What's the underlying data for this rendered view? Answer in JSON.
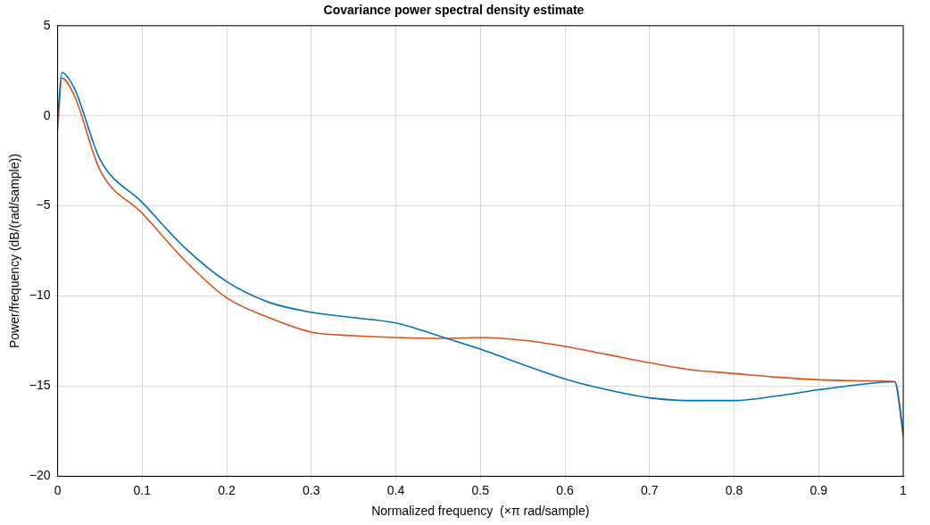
{
  "chart_data": {
    "type": "line",
    "title": "Covariance power spectral density estimate",
    "xlabel": "Normalized frequency  (×π rad/sample)",
    "ylabel": "Power/frequency (dB/(rad/sample))",
    "series": [
      {
        "color": "#0072bd",
        "x": [
          0,
          0.005,
          0.02,
          0.05,
          0.1,
          0.15,
          0.2,
          0.25,
          0.3,
          0.35,
          0.4,
          0.46,
          0.5,
          0.55,
          0.6,
          0.65,
          0.7,
          0.75,
          0.8,
          0.85,
          0.9,
          0.95,
          0.99,
          1
        ],
        "values": [
          -0.2,
          2.4,
          1.5,
          -2.4,
          -4.8,
          -7.3,
          -9.2,
          -10.35,
          -10.9,
          -11.2,
          -11.5,
          -12.35,
          -12.95,
          -13.8,
          -14.6,
          -15.2,
          -15.65,
          -15.8,
          -15.8,
          -15.55,
          -15.2,
          -14.9,
          -14.75,
          -17.5
        ]
      },
      {
        "color": "#d95319",
        "x": [
          0,
          0.005,
          0.02,
          0.05,
          0.1,
          0.15,
          0.2,
          0.25,
          0.3,
          0.35,
          0.4,
          0.46,
          0.5,
          0.55,
          0.6,
          0.65,
          0.7,
          0.75,
          0.8,
          0.85,
          0.9,
          0.95,
          0.99,
          1
        ],
        "values": [
          -0.8,
          2.1,
          1.1,
          -3.0,
          -5.4,
          -8.0,
          -10.1,
          -11.2,
          -12.0,
          -12.2,
          -12.3,
          -12.35,
          -12.3,
          -12.45,
          -12.8,
          -13.25,
          -13.7,
          -14.1,
          -14.3,
          -14.5,
          -14.65,
          -14.7,
          -14.75,
          -17.8
        ]
      }
    ],
    "xlim": [
      0,
      1
    ],
    "xticks": [
      0,
      0.1,
      0.2,
      0.3,
      0.4,
      0.5,
      0.6,
      0.7,
      0.8,
      0.9,
      1
    ],
    "ylim": [
      -20,
      5
    ],
    "yticks": [
      {
        "value": -20,
        "label": "−20"
      },
      {
        "value": -15,
        "label": "−15"
      },
      {
        "value": -10,
        "label": "−10"
      },
      {
        "value": -5,
        "label": "−5"
      },
      0,
      5
    ],
    "grid": true,
    "legend": false,
    "marker": "none",
    "line_style": "solid"
  }
}
